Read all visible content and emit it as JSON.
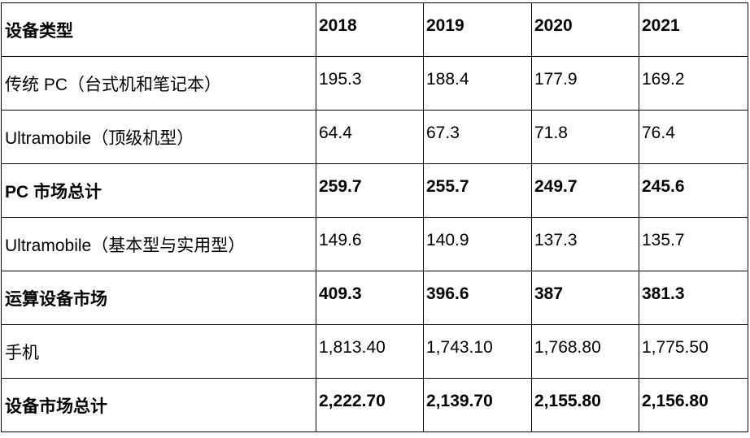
{
  "table": {
    "headers": [
      "设备类型",
      "2018",
      "2019",
      "2020",
      "2021"
    ],
    "rows": [
      {
        "label": "传统 PC（台式机和笔记本）",
        "values": [
          "195.3",
          "188.4",
          "177.9",
          "169.2"
        ],
        "bold": false
      },
      {
        "label": "Ultramobile（顶级机型）",
        "values": [
          "64.4",
          "67.3",
          "71.8",
          "76.4"
        ],
        "bold": false
      },
      {
        "label": "PC 市场总计",
        "values": [
          "259.7",
          "255.7",
          "249.7",
          "245.6"
        ],
        "bold": true
      },
      {
        "label": "Ultramobile（基本型与实用型）",
        "values": [
          "149.6",
          "140.9",
          "137.3",
          "135.7"
        ],
        "bold": false
      },
      {
        "label": "运算设备市场",
        "values": [
          "409.3",
          "396.6",
          "387",
          "381.3"
        ],
        "bold": true
      },
      {
        "label": "手机",
        "values": [
          "1,813.40",
          "1,743.10",
          "1,768.80",
          "1,775.50"
        ],
        "bold": false
      },
      {
        "label": "设备市场总计",
        "values": [
          "2,222.70",
          "2,139.70",
          "2,155.80",
          "2,156.80"
        ],
        "bold": true
      }
    ]
  }
}
